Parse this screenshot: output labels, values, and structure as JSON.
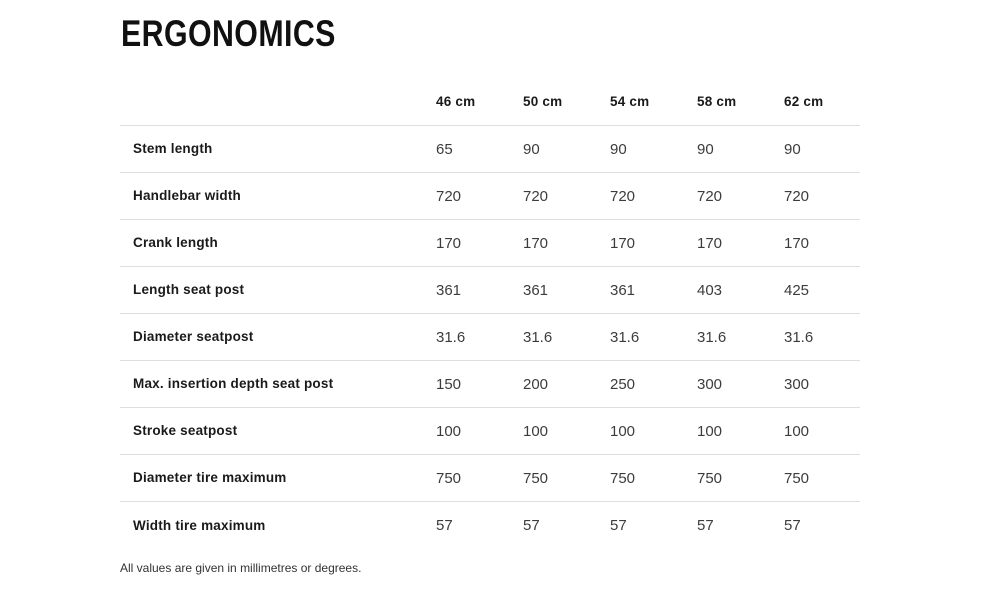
{
  "page": {
    "title": "ERGONOMICS",
    "footnote": "All values are given in millimetres or degrees."
  },
  "table": {
    "columns": [
      "46 cm",
      "50 cm",
      "54 cm",
      "58 cm",
      "62 cm"
    ],
    "rows": [
      {
        "label": "Stem length",
        "values": [
          "65",
          "90",
          "90",
          "90",
          "90"
        ]
      },
      {
        "label": "Handlebar width",
        "values": [
          "720",
          "720",
          "720",
          "720",
          "720"
        ]
      },
      {
        "label": "Crank length",
        "values": [
          "170",
          "170",
          "170",
          "170",
          "170"
        ]
      },
      {
        "label": "Length seat post",
        "values": [
          "361",
          "361",
          "361",
          "403",
          "425"
        ]
      },
      {
        "label": "Diameter seatpost",
        "values": [
          "31.6",
          "31.6",
          "31.6",
          "31.6",
          "31.6"
        ]
      },
      {
        "label": "Max. insertion depth seat post",
        "values": [
          "150",
          "200",
          "250",
          "300",
          "300"
        ]
      },
      {
        "label": "Stroke seatpost",
        "values": [
          "100",
          "100",
          "100",
          "100",
          "100"
        ]
      },
      {
        "label": "Diameter tire maximum",
        "values": [
          "750",
          "750",
          "750",
          "750",
          "750"
        ]
      },
      {
        "label": "Width tire maximum",
        "values": [
          "57",
          "57",
          "57",
          "57",
          "57"
        ]
      }
    ]
  },
  "colors": {
    "title": "#111111",
    "label": "#1a1a1a",
    "value": "#3c3c3c",
    "divider": "#dddddd",
    "background": "#ffffff"
  }
}
